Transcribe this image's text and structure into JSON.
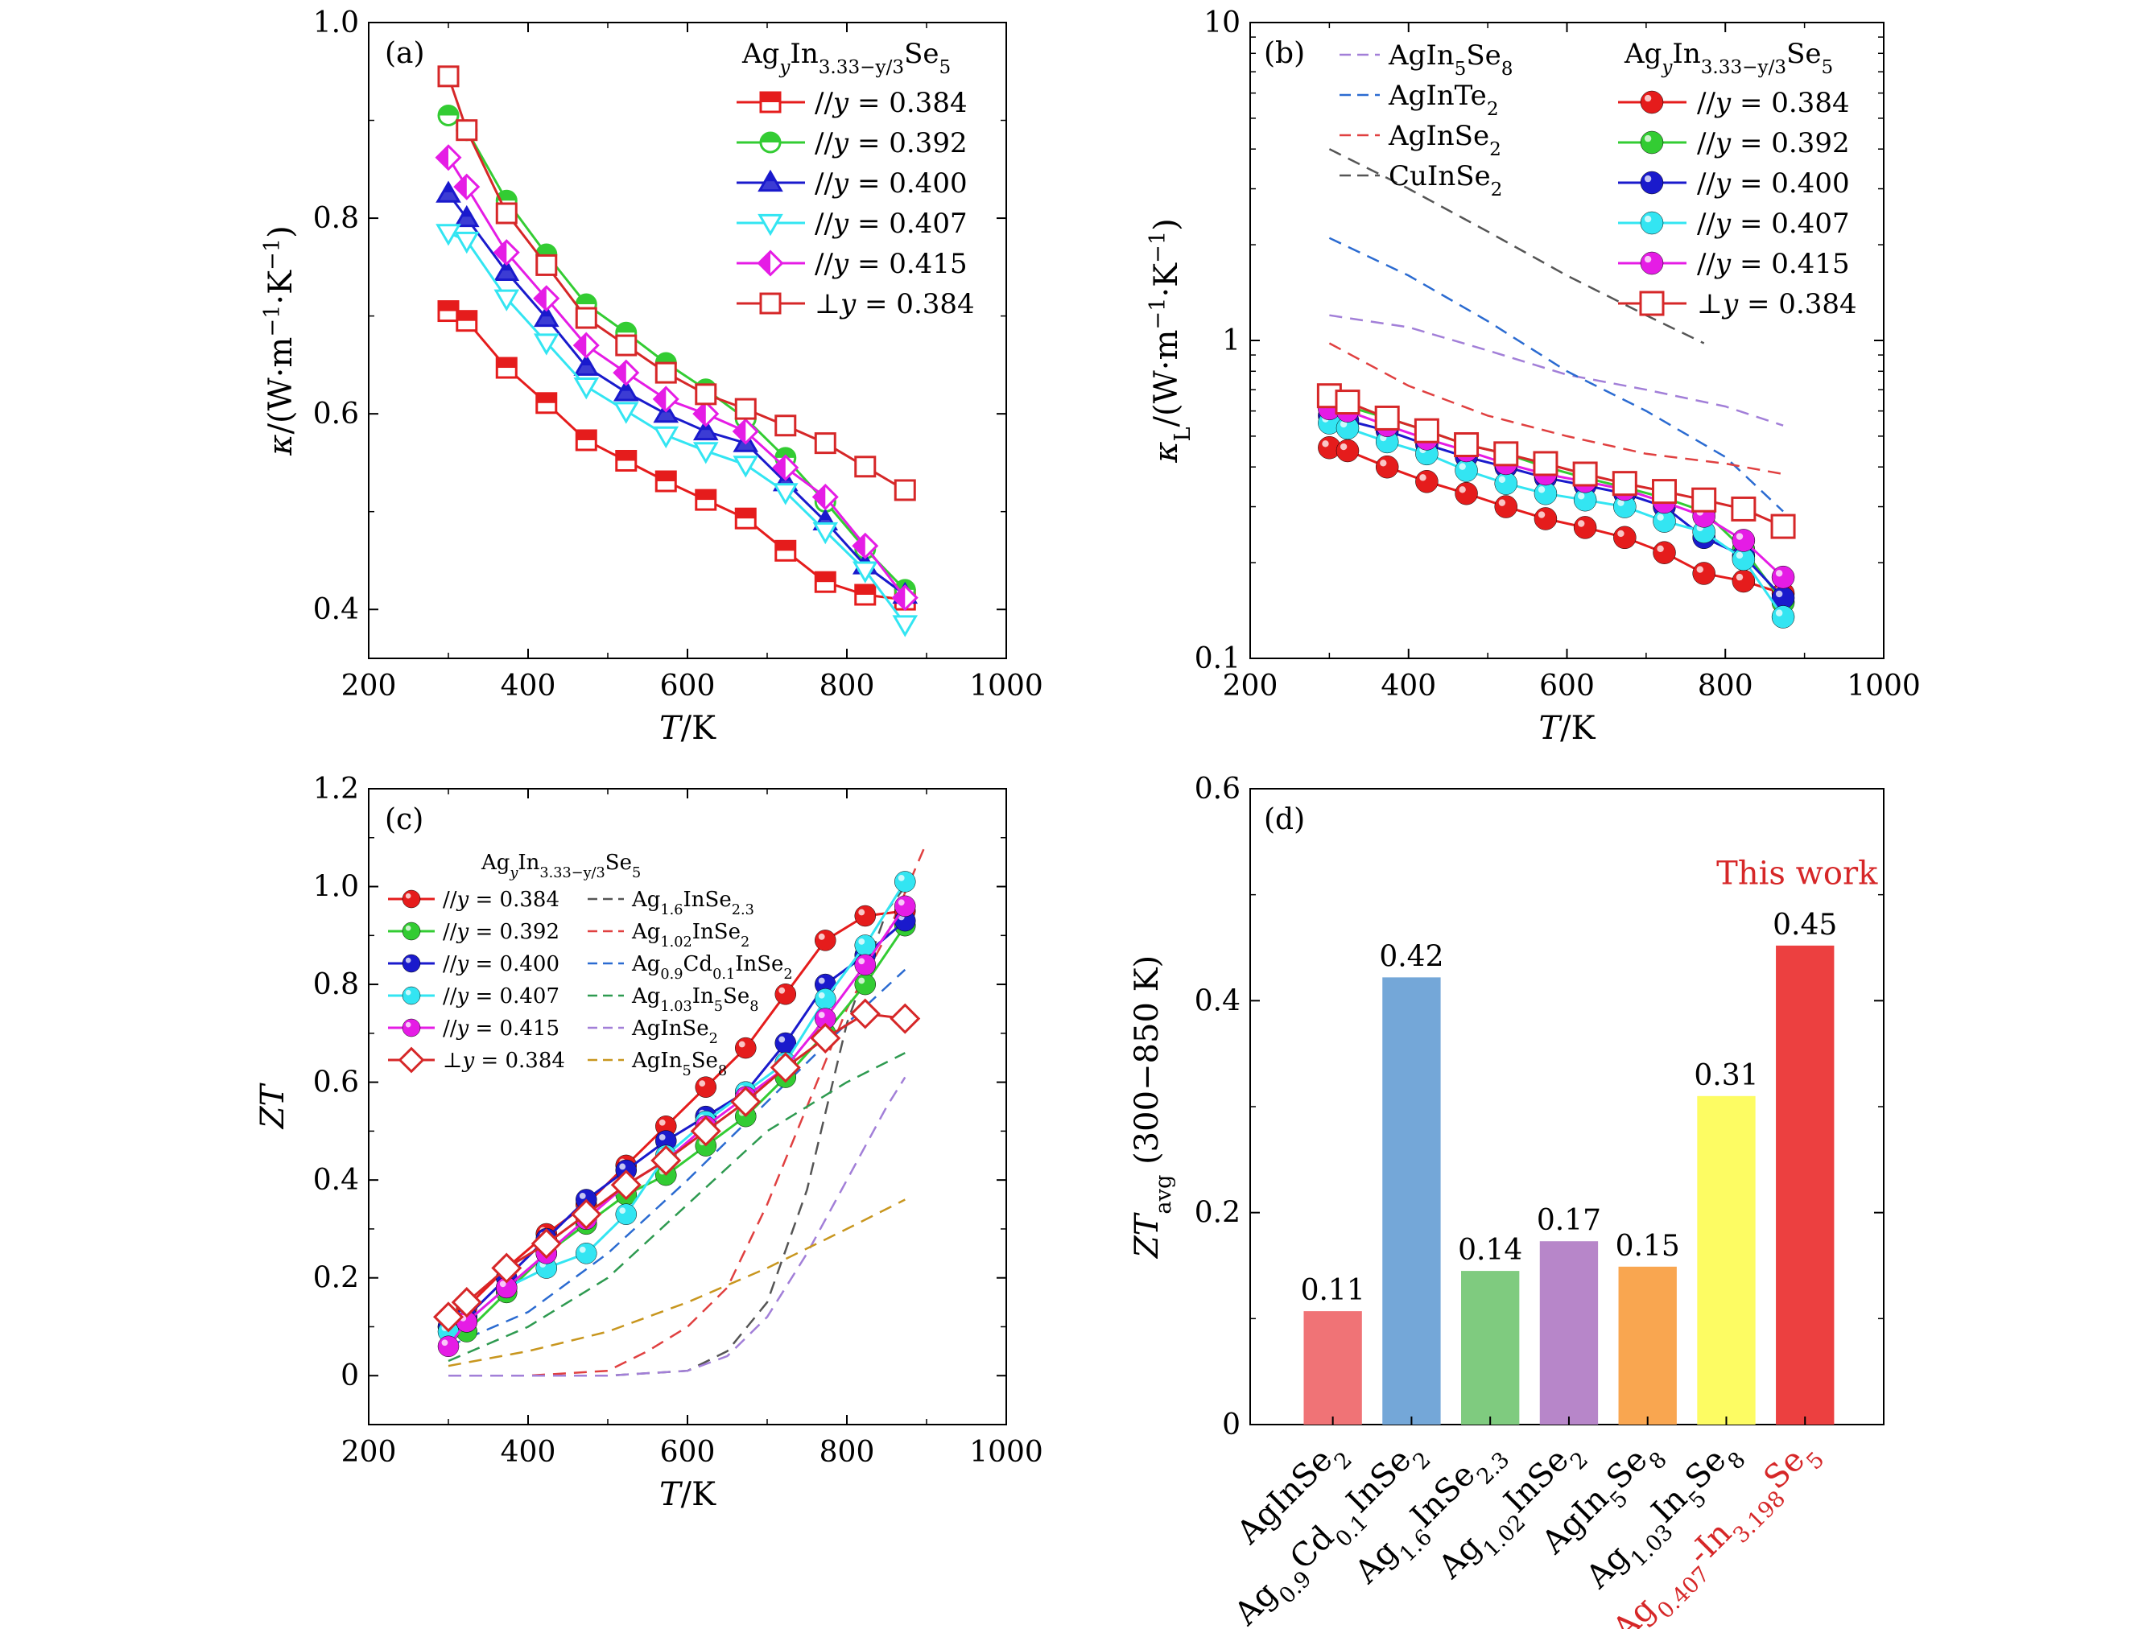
{
  "panels": {
    "a": {
      "label": "(a)",
      "xlabel": "T/K",
      "ylabel": "κ/(W·m⁻¹·K⁻¹)",
      "legend_title": "AgyIn3.33−y/3Se5"
    },
    "b": {
      "label": "(b)",
      "xlabel": "T/K",
      "ylabel": "κL/(W·m⁻¹·K⁻¹)",
      "legend_title": "AgyIn3.33−y/3Se5"
    },
    "c": {
      "label": "(c)",
      "xlabel": "T/K",
      "ylabel": "ZT",
      "legend_title": "AgyIn3.33−y/3Se5"
    },
    "d": {
      "label": "(d)",
      "ylabel": "ZTavg (300−850 K)",
      "annotation": "This work"
    }
  },
  "colors": {
    "red": "#e51c1c",
    "green": "#33cc33",
    "blue": "#1a1acc",
    "cyan": "#33e5f2",
    "magenta": "#e51ce5",
    "darkred": "#d62728",
    "purple_dash": "#a27fd8",
    "blue_dash": "#2b6bd1",
    "red_dash": "#e04040",
    "gray_dash": "#555555",
    "green_dash": "#2e9a50",
    "orange_dash": "#c8961e"
  },
  "chart_data": [
    {
      "panel": "a",
      "type": "line",
      "xlabel": "T/K",
      "ylabel": "κ/(W·m⁻¹·K⁻¹)",
      "xlim": [
        200,
        1000
      ],
      "ylim": [
        0.35,
        1.0
      ],
      "xticks": [
        200,
        400,
        600,
        800,
        1000
      ],
      "yticks": [
        0.4,
        0.6,
        0.8,
        1.0
      ],
      "legend_title": "AgyIn3.33−y/3Se5",
      "legend_position": "top-right",
      "series": [
        {
          "name": "//y = 0.384",
          "color": "#e51c1c",
          "marker": "square-half",
          "x": [
            300,
            323,
            373,
            423,
            473,
            523,
            573,
            623,
            673,
            723,
            773,
            823,
            873
          ],
          "y": [
            0.705,
            0.695,
            0.647,
            0.611,
            0.573,
            0.552,
            0.531,
            0.512,
            0.493,
            0.46,
            0.428,
            0.415,
            0.41
          ]
        },
        {
          "name": "//y = 0.392",
          "color": "#33cc33",
          "marker": "circle-half",
          "x": [
            300,
            323,
            373,
            423,
            473,
            523,
            573,
            623,
            673,
            723,
            773,
            823,
            873
          ],
          "y": [
            0.905,
            0.89,
            0.818,
            0.763,
            0.712,
            0.683,
            0.652,
            0.625,
            0.595,
            0.555,
            0.51,
            0.462,
            0.42
          ]
        },
        {
          "name": "//y = 0.400",
          "color": "#1a1acc",
          "marker": "triangle-half",
          "x": [
            300,
            323,
            373,
            423,
            473,
            523,
            573,
            623,
            673,
            723,
            773,
            823,
            873
          ],
          "y": [
            0.825,
            0.8,
            0.745,
            0.698,
            0.648,
            0.622,
            0.6,
            0.582,
            0.57,
            0.53,
            0.49,
            0.445,
            0.415
          ]
        },
        {
          "name": "//y = 0.407",
          "color": "#33e5f2",
          "marker": "triangle-down",
          "x": [
            300,
            323,
            373,
            423,
            473,
            523,
            573,
            623,
            673,
            723,
            773,
            823,
            873
          ],
          "y": [
            0.785,
            0.777,
            0.718,
            0.673,
            0.628,
            0.603,
            0.578,
            0.562,
            0.548,
            0.52,
            0.48,
            0.44,
            0.385
          ]
        },
        {
          "name": "//y = 0.415",
          "color": "#e51ce5",
          "marker": "diamond-half",
          "x": [
            300,
            323,
            373,
            423,
            473,
            523,
            573,
            623,
            673,
            723,
            773,
            823,
            873
          ],
          "y": [
            0.862,
            0.832,
            0.765,
            0.718,
            0.67,
            0.642,
            0.615,
            0.6,
            0.582,
            0.545,
            0.515,
            0.465,
            0.412
          ]
        },
        {
          "name": "⊥y = 0.384",
          "color": "#d62728",
          "marker": "square-open",
          "x": [
            300,
            323,
            373,
            423,
            473,
            523,
            573,
            623,
            673,
            723,
            773,
            823,
            873
          ],
          "y": [
            0.945,
            0.89,
            0.805,
            0.752,
            0.698,
            0.67,
            0.642,
            0.62,
            0.605,
            0.588,
            0.57,
            0.546,
            0.522
          ]
        }
      ]
    },
    {
      "panel": "b",
      "type": "line",
      "xlabel": "T/K",
      "ylabel": "κL/(W·m⁻¹·K⁻¹)",
      "xlim": [
        200,
        1000
      ],
      "ylim": [
        0.1,
        10
      ],
      "yscale": "log",
      "xticks": [
        200,
        400,
        600,
        800,
        1000
      ],
      "yticks": [
        0.1,
        1,
        10
      ],
      "legend_title": "AgyIn3.33−y/3Se5",
      "legend_position": "top",
      "series": [
        {
          "name": "//y = 0.384",
          "color": "#e51c1c",
          "marker": "ball",
          "x": [
            300,
            323,
            373,
            423,
            473,
            523,
            573,
            623,
            673,
            723,
            773,
            823,
            873
          ],
          "y": [
            0.46,
            0.45,
            0.4,
            0.36,
            0.33,
            0.3,
            0.275,
            0.258,
            0.24,
            0.215,
            0.185,
            0.175,
            0.16
          ]
        },
        {
          "name": "//y = 0.392",
          "color": "#33cc33",
          "marker": "ball",
          "x": [
            300,
            323,
            373,
            423,
            473,
            523,
            573,
            623,
            673,
            723,
            773,
            823,
            873
          ],
          "y": [
            0.63,
            0.62,
            0.57,
            0.52,
            0.47,
            0.44,
            0.4,
            0.37,
            0.345,
            0.32,
            0.29,
            0.22,
            0.15
          ]
        },
        {
          "name": "//y = 0.400",
          "color": "#1a1acc",
          "marker": "ball",
          "x": [
            300,
            323,
            373,
            423,
            473,
            523,
            573,
            623,
            673,
            723,
            773,
            823,
            873
          ],
          "y": [
            0.58,
            0.56,
            0.52,
            0.47,
            0.43,
            0.4,
            0.37,
            0.35,
            0.33,
            0.3,
            0.24,
            0.21,
            0.155
          ]
        },
        {
          "name": "//y = 0.407",
          "color": "#33e5f2",
          "marker": "ball",
          "x": [
            300,
            323,
            373,
            423,
            473,
            523,
            573,
            623,
            673,
            723,
            773,
            823,
            873
          ],
          "y": [
            0.55,
            0.53,
            0.48,
            0.44,
            0.39,
            0.355,
            0.33,
            0.315,
            0.3,
            0.27,
            0.25,
            0.205,
            0.135
          ]
        },
        {
          "name": "//y = 0.415",
          "color": "#e51ce5",
          "marker": "ball",
          "x": [
            300,
            323,
            373,
            423,
            473,
            523,
            573,
            623,
            673,
            723,
            773,
            823,
            873
          ],
          "y": [
            0.61,
            0.6,
            0.54,
            0.49,
            0.45,
            0.41,
            0.38,
            0.36,
            0.34,
            0.31,
            0.28,
            0.235,
            0.18
          ]
        },
        {
          "name": "⊥y = 0.384",
          "color": "#d62728",
          "marker": "square-open",
          "x": [
            300,
            323,
            373,
            423,
            473,
            523,
            573,
            623,
            673,
            723,
            773,
            823,
            873
          ],
          "y": [
            0.67,
            0.64,
            0.57,
            0.52,
            0.47,
            0.44,
            0.41,
            0.38,
            0.355,
            0.335,
            0.315,
            0.295,
            0.26
          ]
        },
        {
          "name": "AgIn5Se8",
          "color": "#a27fd8",
          "dash": true,
          "x": [
            300,
            400,
            500,
            600,
            700,
            800,
            873
          ],
          "y": [
            1.2,
            1.1,
            0.93,
            0.78,
            0.7,
            0.62,
            0.54
          ]
        },
        {
          "name": "AgInTe2",
          "color": "#2b6bd1",
          "dash": true,
          "x": [
            300,
            400,
            500,
            600,
            700,
            800,
            873
          ],
          "y": [
            2.1,
            1.6,
            1.15,
            0.8,
            0.6,
            0.43,
            0.29
          ]
        },
        {
          "name": "AgInSe2",
          "color": "#e04040",
          "dash": true,
          "x": [
            300,
            400,
            500,
            600,
            700,
            800,
            873
          ],
          "y": [
            0.98,
            0.72,
            0.58,
            0.5,
            0.44,
            0.41,
            0.38
          ]
        },
        {
          "name": "CuInSe2",
          "color": "#555555",
          "dash": true,
          "x": [
            300,
            400,
            500,
            600,
            700,
            773
          ],
          "y": [
            4.0,
            3.0,
            2.2,
            1.6,
            1.2,
            0.98
          ]
        }
      ]
    },
    {
      "panel": "c",
      "type": "line",
      "xlabel": "T/K",
      "ylabel": "ZT",
      "xlim": [
        200,
        1000
      ],
      "ylim": [
        -0.1,
        1.2
      ],
      "xticks": [
        200,
        400,
        600,
        800,
        1000
      ],
      "yticks": [
        0,
        0.2,
        0.4,
        0.6,
        0.8,
        1.0,
        1.2
      ],
      "legend_title": "AgyIn3.33−y/3Se5",
      "legend_position": "top-left",
      "series": [
        {
          "name": "//y = 0.384",
          "color": "#e51c1c",
          "marker": "ball",
          "x": [
            300,
            323,
            373,
            423,
            473,
            523,
            573,
            623,
            673,
            723,
            773,
            823,
            873
          ],
          "y": [
            0.12,
            0.14,
            0.22,
            0.29,
            0.35,
            0.43,
            0.51,
            0.59,
            0.67,
            0.78,
            0.89,
            0.94,
            0.95
          ]
        },
        {
          "name": "//y = 0.392",
          "color": "#33cc33",
          "marker": "ball",
          "x": [
            300,
            323,
            373,
            423,
            473,
            523,
            573,
            623,
            673,
            723,
            773,
            823,
            873
          ],
          "y": [
            0.1,
            0.09,
            0.17,
            0.25,
            0.31,
            0.37,
            0.41,
            0.47,
            0.53,
            0.61,
            0.7,
            0.8,
            0.92
          ]
        },
        {
          "name": "//y = 0.400",
          "color": "#1a1acc",
          "marker": "ball",
          "x": [
            300,
            323,
            373,
            423,
            473,
            523,
            573,
            623,
            673,
            723,
            773,
            823,
            873
          ],
          "y": [
            0.1,
            0.12,
            0.2,
            0.28,
            0.36,
            0.42,
            0.48,
            0.53,
            0.58,
            0.68,
            0.8,
            0.86,
            0.93
          ]
        },
        {
          "name": "//y = 0.407",
          "color": "#33e5f2",
          "marker": "ball",
          "x": [
            300,
            323,
            373,
            423,
            473,
            523,
            573,
            623,
            673,
            723,
            773,
            823,
            873
          ],
          "y": [
            0.09,
            0.11,
            0.18,
            0.22,
            0.25,
            0.33,
            0.45,
            0.52,
            0.58,
            0.64,
            0.77,
            0.88,
            1.01
          ]
        },
        {
          "name": "//y = 0.415",
          "color": "#e51ce5",
          "marker": "ball",
          "x": [
            300,
            323,
            373,
            423,
            473,
            523,
            573,
            623,
            673,
            723,
            773,
            823,
            873
          ],
          "y": [
            0.06,
            0.11,
            0.18,
            0.25,
            0.32,
            0.39,
            0.44,
            0.51,
            0.57,
            0.63,
            0.73,
            0.84,
            0.96
          ]
        },
        {
          "name": "⊥y = 0.384",
          "color": "#d62728",
          "marker": "diamond-open",
          "x": [
            300,
            323,
            373,
            423,
            473,
            523,
            573,
            623,
            673,
            723,
            773,
            823,
            873
          ],
          "y": [
            0.12,
            0.15,
            0.22,
            0.27,
            0.33,
            0.39,
            0.44,
            0.5,
            0.56,
            0.63,
            0.69,
            0.74,
            0.73
          ]
        },
        {
          "name": "Ag1.6InSe2.3",
          "color": "#555555",
          "dash": true,
          "x": [
            300,
            400,
            500,
            600,
            650,
            700,
            750,
            800,
            850,
            873
          ],
          "y": [
            0.0,
            0.0,
            0.0,
            0.01,
            0.05,
            0.15,
            0.38,
            0.72,
            0.95,
            1.0
          ]
        },
        {
          "name": "Ag1.02InSe2",
          "color": "#e04040",
          "dash": true,
          "x": [
            300,
            400,
            500,
            550,
            600,
            650,
            700,
            750,
            800,
            850,
            900
          ],
          "y": [
            0.0,
            0.0,
            0.01,
            0.05,
            0.1,
            0.18,
            0.35,
            0.55,
            0.75,
            0.9,
            1.09
          ]
        },
        {
          "name": "Ag0.9Cd0.1InSe2",
          "color": "#2b6bd1",
          "dash": true,
          "x": [
            300,
            400,
            500,
            600,
            700,
            800,
            873
          ],
          "y": [
            0.06,
            0.13,
            0.25,
            0.4,
            0.56,
            0.72,
            0.83
          ]
        },
        {
          "name": "Ag1.03In5Se8",
          "color": "#2e9a50",
          "dash": true,
          "x": [
            300,
            400,
            500,
            600,
            700,
            800,
            873
          ],
          "y": [
            0.03,
            0.1,
            0.2,
            0.35,
            0.5,
            0.6,
            0.66
          ]
        },
        {
          "name": "AgInSe2",
          "color": "#a27fd8",
          "dash": true,
          "x": [
            300,
            400,
            500,
            600,
            650,
            700,
            750,
            800,
            850,
            873
          ],
          "y": [
            0.0,
            0.0,
            0.0,
            0.01,
            0.04,
            0.12,
            0.25,
            0.4,
            0.55,
            0.61
          ]
        },
        {
          "name": "AgIn5Se8",
          "color": "#c8961e",
          "dash": true,
          "x": [
            300,
            400,
            500,
            600,
            700,
            800,
            873
          ],
          "y": [
            0.02,
            0.05,
            0.09,
            0.15,
            0.22,
            0.3,
            0.36
          ]
        }
      ]
    },
    {
      "panel": "d",
      "type": "bar",
      "ylabel": "ZTavg (300−850 K)",
      "ylim": [
        0,
        0.6
      ],
      "yticks": [
        0,
        0.2,
        0.4,
        0.6
      ],
      "categories": [
        "AgInSe2",
        "Ag0.9Cd0.1InSe2",
        "Ag1.6InSe2.3",
        "Ag1.02InSe2",
        "AgIn5Se8",
        "Ag1.03In5Se8",
        "Ag0.407-In3.198Se5"
      ],
      "values": [
        0.107,
        0.422,
        0.145,
        0.173,
        0.149,
        0.31,
        0.452
      ],
      "value_labels": [
        "0.11",
        "0.42",
        "0.14",
        "0.17",
        "0.15",
        "0.31",
        "0.45"
      ],
      "colors": [
        "#f07376",
        "#74a7d8",
        "#7fcb7f",
        "#b786c9",
        "#f9a650",
        "#fdfc63",
        "#ec4040"
      ],
      "annotation": "This work"
    }
  ]
}
